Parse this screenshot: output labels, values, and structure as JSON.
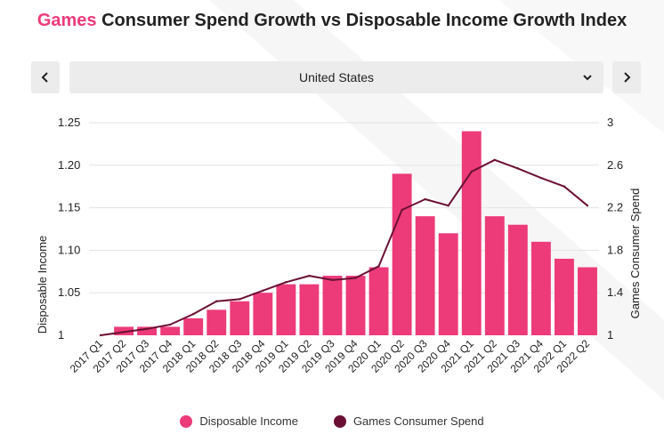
{
  "header": {
    "title_brand": "Games",
    "title_rest": " Consumer Spend Growth vs Disposable Income Growth Index"
  },
  "controls": {
    "prev_label": "‹",
    "next_label": "›",
    "region_selected": "United States"
  },
  "colors": {
    "bar": "#ec3b78",
    "line": "#6b1034",
    "brand": "#ec3b78",
    "grid": "#e3e3e3"
  },
  "chart_data": {
    "type": "bar",
    "title": "Games Consumer Spend Growth vs Disposable Income Growth Index",
    "categories": [
      "2017 Q1",
      "2017 Q2",
      "2017 Q3",
      "2017 Q4",
      "2018 Q1",
      "2018 Q2",
      "2018 Q3",
      "2018 Q4",
      "2019 Q1",
      "2019 Q2",
      "2019 Q3",
      "2019 Q4",
      "2020 Q1",
      "2020 Q2",
      "2020 Q3",
      "2020 Q4",
      "2021 Q1",
      "2021 Q2",
      "2021 Q3",
      "2021 Q4",
      "2022 Q1",
      "2022 Q2"
    ],
    "series": [
      {
        "name": "Disposable Income",
        "type": "bar",
        "axis": "left",
        "values": [
          1.0,
          1.01,
          1.01,
          1.01,
          1.02,
          1.03,
          1.04,
          1.05,
          1.06,
          1.06,
          1.07,
          1.07,
          1.08,
          1.19,
          1.14,
          1.12,
          1.24,
          1.14,
          1.13,
          1.11,
          1.09,
          1.08
        ]
      },
      {
        "name": "Games Consumer Spend",
        "type": "line",
        "axis": "right",
        "values": [
          1.0,
          1.03,
          1.06,
          1.1,
          1.2,
          1.32,
          1.34,
          1.42,
          1.5,
          1.56,
          1.52,
          1.54,
          1.65,
          2.18,
          2.28,
          2.22,
          2.54,
          2.65,
          2.57,
          2.48,
          2.4,
          2.22
        ]
      }
    ],
    "ylabel": "Disposable Income",
    "ylim": [
      1.0,
      1.25
    ],
    "yticks": [
      "1",
      "1.05",
      "1.10",
      "1.15",
      "1.20",
      "1.25"
    ],
    "y2label": "Games Consumer Spend",
    "y2lim": [
      1.0,
      3.0
    ],
    "y2ticks": [
      "1",
      "1.4",
      "1.8",
      "2.2",
      "2.6",
      "3"
    ],
    "legend": [
      "Disposable Income",
      "Games Consumer Spend"
    ],
    "legend_position": "bottom",
    "grid": true
  }
}
